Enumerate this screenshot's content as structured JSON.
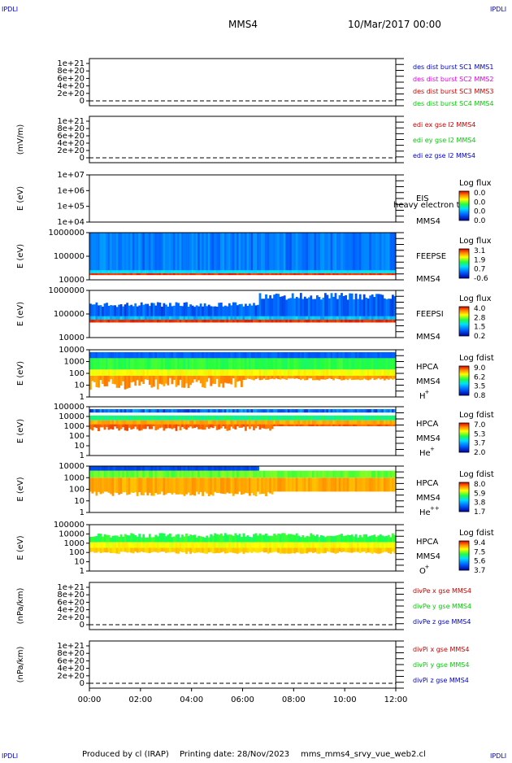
{
  "header": {
    "corner_label": "IPDLI",
    "spacecraft": "MMS4",
    "date": "10/Mar/2017 00:00"
  },
  "footer": {
    "produced_by": "Produced by cl (IRAP)",
    "printing_date": "Printing date: 28/Nov/2023",
    "filename": "mms_mms4_srvy_vue_web2.cl"
  },
  "colors": {
    "red": "#cc0000",
    "green": "#00cc00",
    "blue": "#0000cc",
    "magenta": "#dd00dd"
  },
  "time_axis": {
    "ticks": [
      "00:00",
      "02:00",
      "04:00",
      "06:00",
      "08:00",
      "10:00",
      "12:00"
    ],
    "range_hours": [
      0,
      12
    ]
  },
  "chart_data": [
    {
      "type": "line",
      "panel": "des-dist",
      "ylabel": "",
      "yticks": [
        "1e+21",
        "8e+20",
        "6e+20",
        "4e+20",
        "2e+20",
        "0"
      ],
      "ylim": [
        0,
        1e+21
      ],
      "zero_line": "dashed",
      "series": [
        {
          "name": "des dist burst SC1 MMS1",
          "color": "#0000cc"
        },
        {
          "name": "des dist burst SC2 MMS2",
          "color": "#dd00dd"
        },
        {
          "name": "des dist burst SC3 MMS3",
          "color": "#cc0000"
        },
        {
          "name": "des dist burst SC4 MMS4",
          "color": "#00cc00"
        }
      ]
    },
    {
      "type": "line",
      "panel": "edi",
      "ylabel": "(mV/m)",
      "yticks": [
        "1e+21",
        "8e+20",
        "6e+20",
        "4e+20",
        "2e+20",
        "0"
      ],
      "ylim": [
        0,
        1e+21
      ],
      "zero_line": "dashed",
      "series": [
        {
          "name": "edi ex gse l2 MMS4",
          "color": "#cc0000"
        },
        {
          "name": "edi ey gse l2 MMS4",
          "color": "#00cc00"
        },
        {
          "name": "edi ez gse l2 MMS4",
          "color": "#0000cc"
        }
      ]
    },
    {
      "type": "heatmap",
      "panel": "eis",
      "ylabel": "E (eV)",
      "yticks": [
        "1e+07",
        "1e+06",
        "1e+05",
        "1e+04"
      ],
      "scale": "log",
      "labels": [
        "EIS",
        "MMS4"
      ],
      "overlay_text": "heavy electron to",
      "colorbar": {
        "title": "Log flux",
        "ticks": [
          "0.0",
          "0.0",
          "0.0",
          "0.0"
        ]
      }
    },
    {
      "type": "heatmap",
      "panel": "feepse",
      "ylabel": "E (eV)",
      "yticks": [
        "1000000",
        "100000",
        "10000"
      ],
      "scale": "log",
      "labels": [
        "FEEPSE",
        "MMS4"
      ],
      "colorbar": {
        "title": "Log flux",
        "ticks": [
          "3.1",
          "1.9",
          "0.7",
          "-0.6"
        ]
      }
    },
    {
      "type": "heatmap",
      "panel": "feepsi",
      "ylabel": "E (eV)",
      "yticks": [
        "1000000",
        "100000",
        "10000"
      ],
      "scale": "log",
      "labels": [
        "FEEPSI",
        "MMS4"
      ],
      "colorbar": {
        "title": "Log flux",
        "ticks": [
          "4.0",
          "2.8",
          "1.5",
          "0.2"
        ]
      }
    },
    {
      "type": "heatmap",
      "panel": "hpca-h",
      "ylabel": "E (eV)",
      "yticks": [
        "10000",
        "1000",
        "100",
        "10",
        "1"
      ],
      "scale": "log",
      "labels": [
        "HPCA",
        "MMS4"
      ],
      "species": "H",
      "species_sup": "+",
      "colorbar": {
        "title": "Log fdist",
        "ticks": [
          "9.0",
          "6.2",
          "3.5",
          "0.8"
        ]
      }
    },
    {
      "type": "heatmap",
      "panel": "hpca-he",
      "ylabel": "E (eV)",
      "yticks": [
        "100000",
        "10000",
        "1000",
        "100",
        "10",
        "1"
      ],
      "scale": "log",
      "labels": [
        "HPCA",
        "MMS4"
      ],
      "species": "He",
      "species_sup": "+",
      "colorbar": {
        "title": "Log fdist",
        "ticks": [
          "7.0",
          "5.3",
          "3.7",
          "2.0"
        ]
      }
    },
    {
      "type": "heatmap",
      "panel": "hpca-hepp",
      "ylabel": "E (eV)",
      "yticks": [
        "10000",
        "1000",
        "100",
        "10",
        "1"
      ],
      "scale": "log",
      "labels": [
        "HPCA",
        "MMS4"
      ],
      "species": "He",
      "species_sup": "++",
      "colorbar": {
        "title": "Log fdist",
        "ticks": [
          "8.0",
          "5.9",
          "3.8",
          "1.7"
        ]
      }
    },
    {
      "type": "heatmap",
      "panel": "hpca-o",
      "ylabel": "E (eV)",
      "yticks": [
        "100000",
        "10000",
        "1000",
        "100",
        "10",
        "1"
      ],
      "scale": "log",
      "labels": [
        "HPCA",
        "MMS4"
      ],
      "species": "O",
      "species_sup": "+",
      "colorbar": {
        "title": "Log fdist",
        "ticks": [
          "9.4",
          "7.5",
          "5.6",
          "3.7"
        ]
      }
    },
    {
      "type": "line",
      "panel": "divpe",
      "ylabel": "(nPa/km)",
      "yticks": [
        "1e+21",
        "8e+20",
        "6e+20",
        "4e+20",
        "2e+20",
        "0"
      ],
      "ylim": [
        0,
        1e+21
      ],
      "zero_line": "dashed",
      "series": [
        {
          "name": "divPe x gse MMS4",
          "color": "#cc0000"
        },
        {
          "name": "divPe y gse MMS4",
          "color": "#00cc00"
        },
        {
          "name": "divPe z gse MMS4",
          "color": "#0000cc"
        }
      ]
    },
    {
      "type": "line",
      "panel": "divpi",
      "ylabel": "(nPa/km)",
      "yticks": [
        "1e+21",
        "8e+20",
        "6e+20",
        "4e+20",
        "2e+20",
        "0"
      ],
      "ylim": [
        0,
        1e+21
      ],
      "zero_line": "dashed",
      "series": [
        {
          "name": "divPi x gse MMS4",
          "color": "#cc0000"
        },
        {
          "name": "divPi y gse MMS4",
          "color": "#00cc00"
        },
        {
          "name": "divPi z gse MMS4",
          "color": "#0000cc"
        }
      ]
    }
  ]
}
